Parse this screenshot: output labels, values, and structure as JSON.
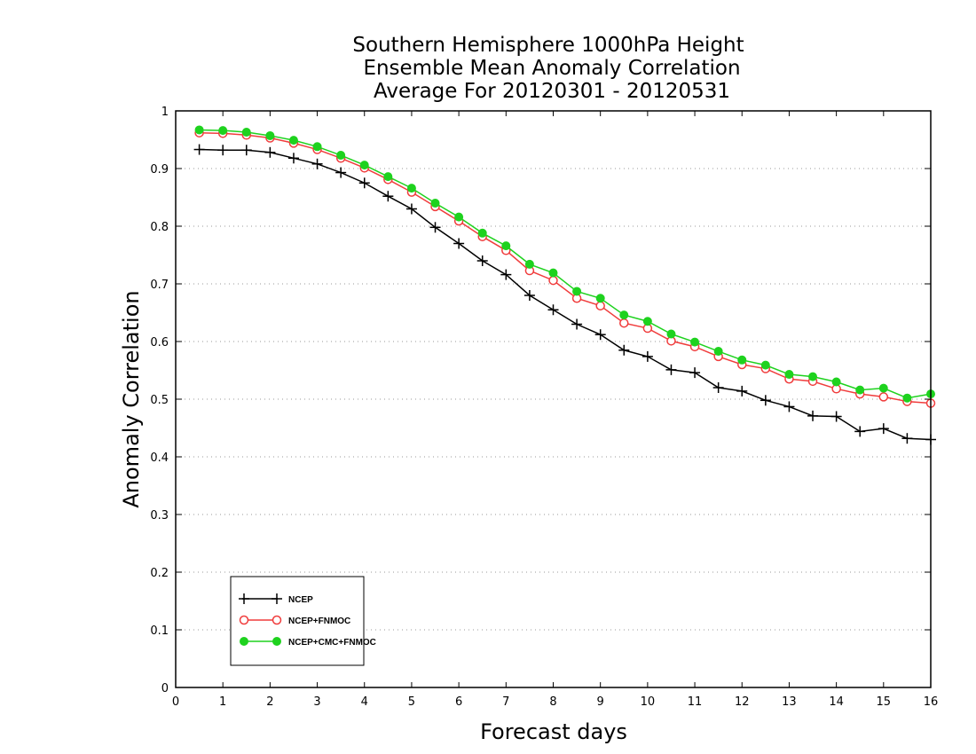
{
  "chart_data": {
    "type": "line",
    "title": [
      "Southern Hemisphere 1000hPa Height",
      "Ensemble Mean Anomaly Correlation",
      "Average For 20120301 - 20120531"
    ],
    "xlabel": "Forecast days",
    "ylabel": "Anomaly Correlation",
    "xlim": [
      0,
      16
    ],
    "ylim": [
      0,
      1
    ],
    "xticks": [
      0,
      1,
      2,
      3,
      4,
      5,
      6,
      7,
      8,
      9,
      10,
      11,
      12,
      13,
      14,
      15,
      16
    ],
    "yticks": [
      0,
      0.1,
      0.2,
      0.3,
      0.4,
      0.5,
      0.6,
      0.7,
      0.8,
      0.9,
      1
    ],
    "grid": "horizontal dotted",
    "legend_position": "lower-left",
    "x": [
      0.5,
      1,
      1.5,
      2,
      2.5,
      3,
      3.5,
      4,
      4.5,
      5,
      5.5,
      6,
      6.5,
      7,
      7.5,
      8,
      8.5,
      9,
      9.5,
      10,
      10.5,
      11,
      11.5,
      12,
      12.5,
      13,
      13.5,
      14,
      14.5,
      15,
      15.5,
      16
    ],
    "series": [
      {
        "name": "NCEP",
        "color": "#000000",
        "marker": "plus",
        "values": [
          0.933,
          0.932,
          0.932,
          0.928,
          0.918,
          0.908,
          0.893,
          0.875,
          0.852,
          0.83,
          0.798,
          0.77,
          0.74,
          0.716,
          0.68,
          0.655,
          0.63,
          0.612,
          0.585,
          0.574,
          0.551,
          0.546,
          0.52,
          0.514,
          0.498,
          0.487,
          0.471,
          0.47,
          0.444,
          0.449,
          0.432,
          0.43
        ]
      },
      {
        "name": "NCEP+FNMOC",
        "color": "#f03c3c",
        "marker": "open-circle",
        "values": [
          0.962,
          0.961,
          0.958,
          0.953,
          0.944,
          0.933,
          0.918,
          0.901,
          0.881,
          0.859,
          0.834,
          0.809,
          0.782,
          0.758,
          0.723,
          0.706,
          0.675,
          0.662,
          0.632,
          0.623,
          0.601,
          0.591,
          0.574,
          0.56,
          0.553,
          0.535,
          0.531,
          0.518,
          0.509,
          0.504,
          0.496,
          0.493
        ]
      },
      {
        "name": "NCEP+CMC+FNMOC",
        "color": "#1ed21e",
        "marker": "filled-circle",
        "values": [
          0.967,
          0.966,
          0.963,
          0.957,
          0.949,
          0.938,
          0.923,
          0.906,
          0.886,
          0.866,
          0.84,
          0.816,
          0.788,
          0.766,
          0.734,
          0.719,
          0.687,
          0.675,
          0.646,
          0.635,
          0.613,
          0.599,
          0.583,
          0.568,
          0.559,
          0.543,
          0.539,
          0.53,
          0.516,
          0.519,
          0.502,
          0.509
        ]
      }
    ]
  }
}
